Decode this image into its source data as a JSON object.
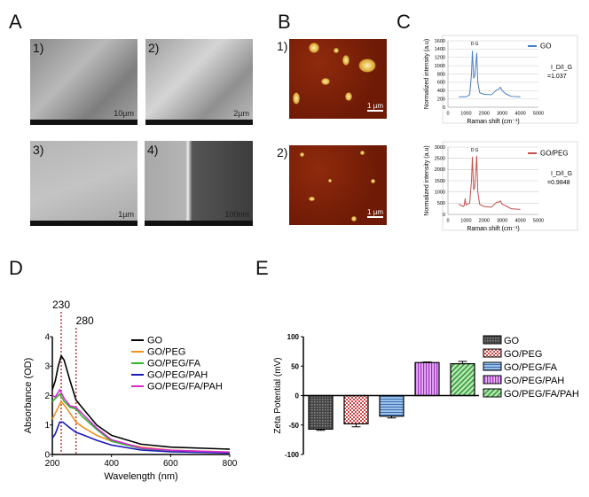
{
  "panels": {
    "A": "A",
    "B": "B",
    "C": "C",
    "D": "D",
    "E": "E"
  },
  "sem": [
    {
      "label": "1)",
      "scale": "10µm"
    },
    {
      "label": "2)",
      "scale": "2µm"
    },
    {
      "label": "3)",
      "scale": "1µm"
    },
    {
      "label": "4)",
      "scale": "100nm"
    }
  ],
  "afm": [
    {
      "label": "1)",
      "scale": "1 µm"
    },
    {
      "label": "2)",
      "scale": "1 µm"
    }
  ],
  "chart_data": [
    {
      "id": "raman-go",
      "type": "line",
      "xlabel": "Raman shift (cm⁻¹)",
      "ylabel": "Normalized intensity (a.u)",
      "xlim": [
        0,
        5000
      ],
      "ylim": [
        0,
        1600
      ],
      "xticks": [
        0,
        1000,
        2000,
        3000,
        4000,
        5000
      ],
      "yticks": [
        0,
        200,
        400,
        600,
        800,
        1000,
        1200,
        1400,
        1600
      ],
      "grid": true,
      "legend": "top-right",
      "peak_labels": [
        "D",
        "G"
      ],
      "annotation": [
        "I_D/I_G",
        "=1.037"
      ],
      "series": [
        {
          "name": "GO",
          "color": "#4a7fc1",
          "x": [
            600,
            1000,
            1200,
            1300,
            1350,
            1420,
            1480,
            1590,
            1650,
            1750,
            2000,
            2400,
            2700,
            2800,
            2900,
            3000,
            3200,
            3500,
            4000
          ],
          "y": [
            250,
            250,
            300,
            800,
            1350,
            700,
            750,
            1300,
            600,
            350,
            310,
            300,
            420,
            430,
            480,
            400,
            320,
            260,
            250
          ]
        }
      ]
    },
    {
      "id": "raman-gopeg",
      "type": "line",
      "xlabel": "Raman shift (cm⁻¹)",
      "ylabel": "Normalized intensity (a.u)",
      "xlim": [
        0,
        5000
      ],
      "ylim": [
        0,
        3000
      ],
      "xticks": [
        0,
        1000,
        2000,
        3000,
        4000,
        5000
      ],
      "yticks": [
        0,
        500,
        1000,
        1500,
        2000,
        2500,
        3000
      ],
      "grid": true,
      "legend": "top-right",
      "peak_labels": [
        "D",
        "G"
      ],
      "annotation": [
        "I_D/I_G",
        "=0.9848"
      ],
      "series": [
        {
          "name": "GO/PEG",
          "color": "#c0504d",
          "x": [
            600,
            850,
            900,
            950,
            1000,
            1200,
            1300,
            1350,
            1420,
            1480,
            1590,
            1650,
            1750,
            2000,
            2400,
            2700,
            2800,
            2900,
            3000,
            3200,
            3500,
            4000
          ],
          "y": [
            450,
            350,
            400,
            700,
            420,
            500,
            1500,
            2550,
            1100,
            1200,
            2600,
            1000,
            450,
            350,
            320,
            550,
            540,
            600,
            450,
            380,
            250,
            220
          ]
        }
      ]
    },
    {
      "id": "absorbance",
      "type": "line",
      "xlabel": "Wavelength (nm)",
      "ylabel": "Absorbance (OD)",
      "xlim": [
        200,
        800
      ],
      "ylim": [
        0,
        4
      ],
      "xticks": [
        200,
        400,
        600,
        800
      ],
      "yticks": [
        0,
        1,
        2,
        3,
        4
      ],
      "grid": false,
      "legend": "top-right",
      "reference_lines": [
        {
          "x": 230,
          "label": "230"
        },
        {
          "x": 280,
          "label": "280"
        }
      ],
      "series": [
        {
          "name": "GO",
          "color": "#000000",
          "x": [
            200,
            210,
            220,
            230,
            240,
            260,
            280,
            300,
            350,
            400,
            500,
            600,
            800
          ],
          "y": [
            2.2,
            2.5,
            3.0,
            3.35,
            3.2,
            2.5,
            1.85,
            1.6,
            1.0,
            0.65,
            0.35,
            0.25,
            0.18
          ]
        },
        {
          "name": "GO/PEG",
          "color": "#f0901e",
          "x": [
            200,
            210,
            230,
            250,
            280,
            300,
            350,
            400,
            500,
            600,
            800
          ],
          "y": [
            1.2,
            1.4,
            1.8,
            1.55,
            1.1,
            0.95,
            0.65,
            0.45,
            0.25,
            0.15,
            0.08
          ]
        },
        {
          "name": "GO/PEG/FA",
          "color": "#2eb82e",
          "x": [
            200,
            210,
            225,
            240,
            260,
            280,
            300,
            350,
            400,
            500,
            600,
            800
          ],
          "y": [
            1.8,
            1.9,
            2.05,
            1.8,
            1.6,
            1.55,
            1.3,
            0.85,
            0.45,
            0.2,
            0.12,
            0.06
          ]
        },
        {
          "name": "GO/PEG/PAH",
          "color": "#1a1ab8",
          "x": [
            200,
            210,
            225,
            235,
            260,
            280,
            300,
            350,
            400,
            500,
            600,
            800
          ],
          "y": [
            0.55,
            0.7,
            1.1,
            1.1,
            0.9,
            0.75,
            0.68,
            0.48,
            0.32,
            0.15,
            0.09,
            0.05
          ]
        },
        {
          "name": "GO/PEG/FA/PAH",
          "color": "#d42bd4",
          "x": [
            200,
            210,
            225,
            240,
            260,
            280,
            300,
            350,
            400,
            500,
            600,
            800
          ],
          "y": [
            2.0,
            1.95,
            2.2,
            1.9,
            1.65,
            1.6,
            1.4,
            0.9,
            0.5,
            0.22,
            0.14,
            0.08
          ]
        }
      ]
    },
    {
      "id": "zeta",
      "type": "bar",
      "ylabel": "Zeta Potential (mV)",
      "ylim": [
        -100,
        100
      ],
      "yticks": [
        -100,
        -50,
        0,
        50,
        100
      ],
      "legend": "right",
      "categories": [
        "GO",
        "GO/PEG",
        "GO/PEG/FA",
        "GO/PEG/PAH",
        "GO/PEG/FA/PAH"
      ],
      "values": [
        -57,
        -48,
        -35,
        56,
        54
      ],
      "errors": [
        2,
        5,
        3,
        1,
        4
      ],
      "colors": [
        "#555555",
        "#d98080",
        "#6f9fd8",
        "#c05ed8",
        "#5cbf5c"
      ]
    }
  ]
}
